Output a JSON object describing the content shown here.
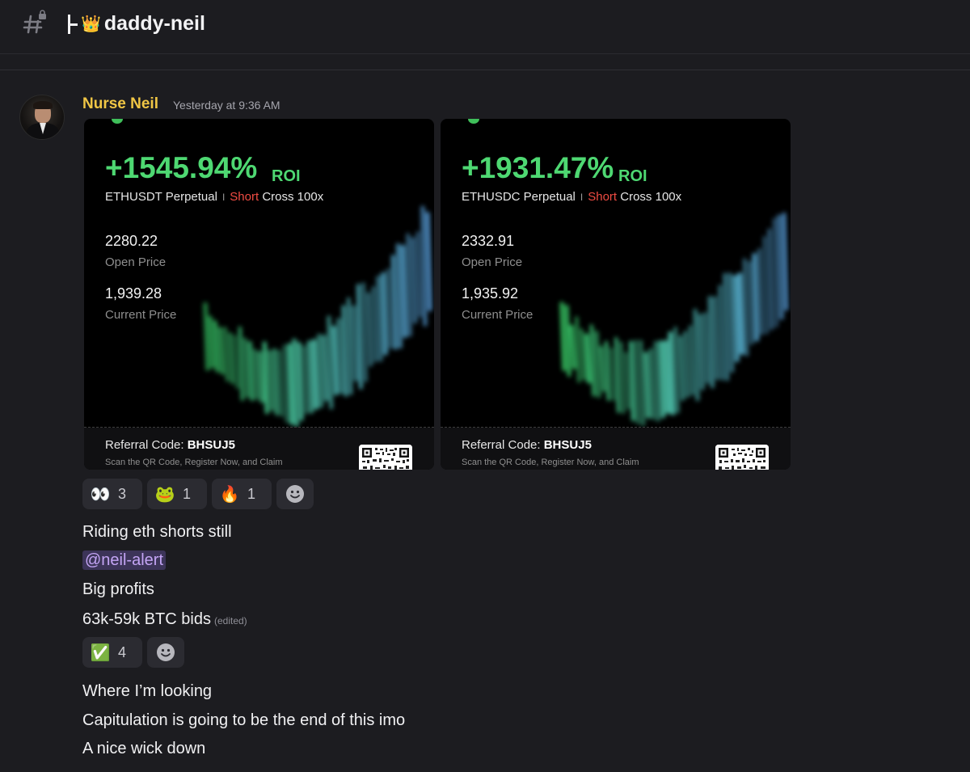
{
  "channel": {
    "icon": "locked-text-channel-icon",
    "crown_emoji": "👑",
    "name": "daddy-neil"
  },
  "message": {
    "author": "Nurse Neil",
    "author_color": "#f0c645",
    "timestamp": "Yesterday at 9:36 AM",
    "cards": [
      {
        "roi_value": "+1545.94%",
        "roi_label": "ROI",
        "pair": "ETHUSDT Perpetual",
        "separator": "I",
        "side": "Short",
        "mode": "Cross 100x",
        "open_price": "2280.22",
        "open_price_label": "Open Price",
        "current_price": "1,939.28",
        "current_price_label": "Current Price",
        "referral_label": "Referral Code:",
        "referral_code": "BHSUJ5",
        "scan_text": "Scan the QR Code, Register Now, and Claim"
      },
      {
        "roi_value": "+1931.47%",
        "roi_label": "ROI",
        "pair": "ETHUSDC Perpetual",
        "separator": "I",
        "side": "Short",
        "mode": "Cross 100x",
        "open_price": "2332.91",
        "open_price_label": "Open Price",
        "current_price": "1,935.92",
        "current_price_label": "Current Price",
        "referral_label": "Referral Code:",
        "referral_code": "BHSUJ5",
        "scan_text": "Scan the QR Code, Register Now, and Claim"
      }
    ],
    "reactions_1": [
      {
        "emoji": "👀",
        "count": "3"
      },
      {
        "emoji": "🐸",
        "count": "1"
      },
      {
        "emoji": "🔥",
        "count": "1"
      }
    ],
    "lines_1": {
      "l1": "Riding eth shorts still",
      "mention": "@neil-alert",
      "l3": "Big profits",
      "l4": "63k-59k BTC bids",
      "edited": "(edited)"
    },
    "reactions_2": [
      {
        "emoji": "✅",
        "count": "4"
      }
    ],
    "lines_2": {
      "l1": "Where I’m looking",
      "l2": "Capitulation is going to be the end of this imo",
      "l3": "A nice wick down"
    }
  }
}
